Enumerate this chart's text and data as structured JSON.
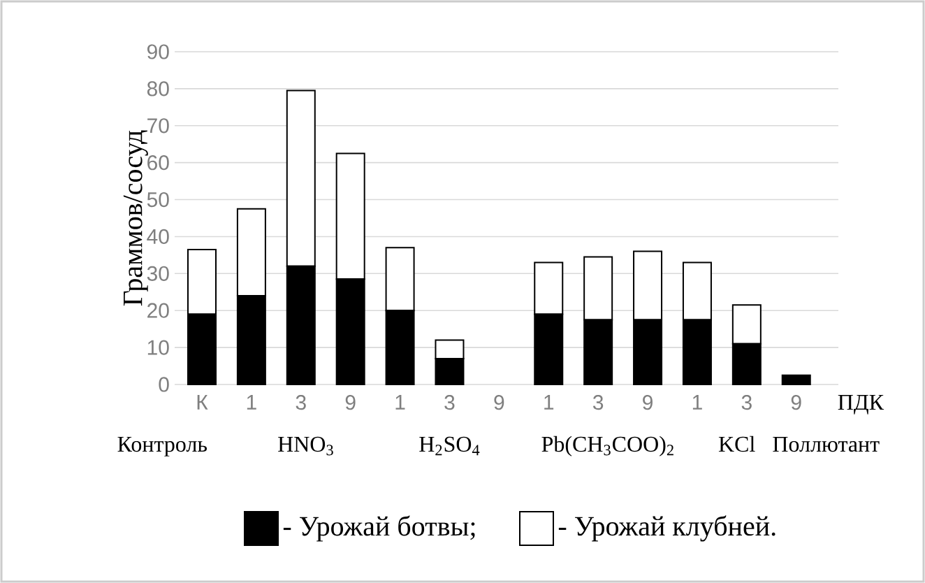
{
  "chart_data": {
    "type": "bar",
    "stacked": true,
    "ylabel": "Граммов/сосуд",
    "categories": [
      "К",
      "1",
      "3",
      "9",
      "1",
      "3",
      "9",
      "1",
      "3",
      "9",
      "1",
      "3",
      "9"
    ],
    "series": [
      {
        "name": "- Урожай ботвы;",
        "color": "#000000",
        "values": [
          19,
          24,
          32,
          28.5,
          20,
          7,
          null,
          19,
          17.5,
          17.5,
          17.5,
          11,
          2.5
        ]
      },
      {
        "name": "- Урожай клубней.",
        "color": "#ffffff",
        "values": [
          17.5,
          23.5,
          47.5,
          34,
          17,
          5,
          null,
          14,
          17,
          18.5,
          15.5,
          10.5,
          null
        ]
      }
    ],
    "ylim": [
      0,
      90
    ],
    "yticks": [
      0,
      10,
      20,
      30,
      40,
      50,
      60,
      70,
      80,
      90
    ],
    "grid": "y",
    "legend": "bottom",
    "annotations": [
      "Контроль",
      "HNO$_{3}$",
      "H$_{2}$SO$_{4}$",
      "Pb(CH$_{3}$COO)$_{2}$",
      "KCl",
      "ПДК",
      "Поллютант"
    ]
  }
}
